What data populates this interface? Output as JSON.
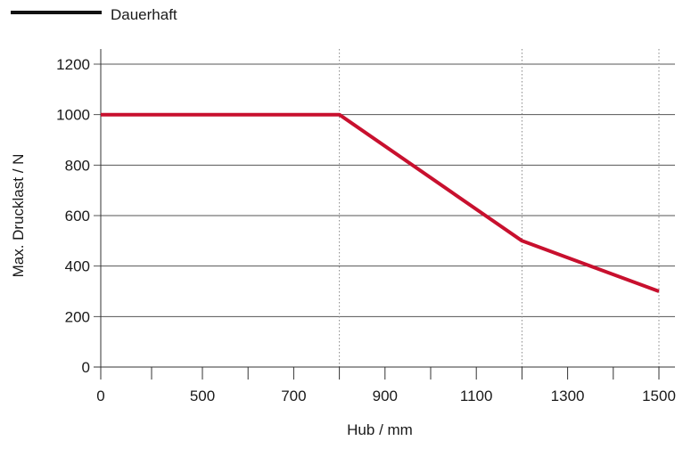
{
  "chart_data": {
    "type": "line",
    "xlabel": "Hub / mm",
    "ylabel": "Max. Drucklast / N",
    "x_ticks": [
      0,
      500,
      700,
      900,
      1100,
      1300,
      1500
    ],
    "y_ticks": [
      0,
      200,
      400,
      600,
      800,
      1000,
      1200
    ],
    "xlim": [
      0,
      1500
    ],
    "ylim": [
      0,
      1200
    ],
    "grid": "horizontal",
    "legend_position": "top-left",
    "series": [
      {
        "name": "Dauerhaft",
        "color": "#c8102e",
        "x": [
          0,
          800,
          1200,
          1500
        ],
        "y": [
          1000,
          1000,
          500,
          300
        ]
      }
    ],
    "dotted_reference_lines_x": [
      800,
      1200,
      1500
    ]
  }
}
